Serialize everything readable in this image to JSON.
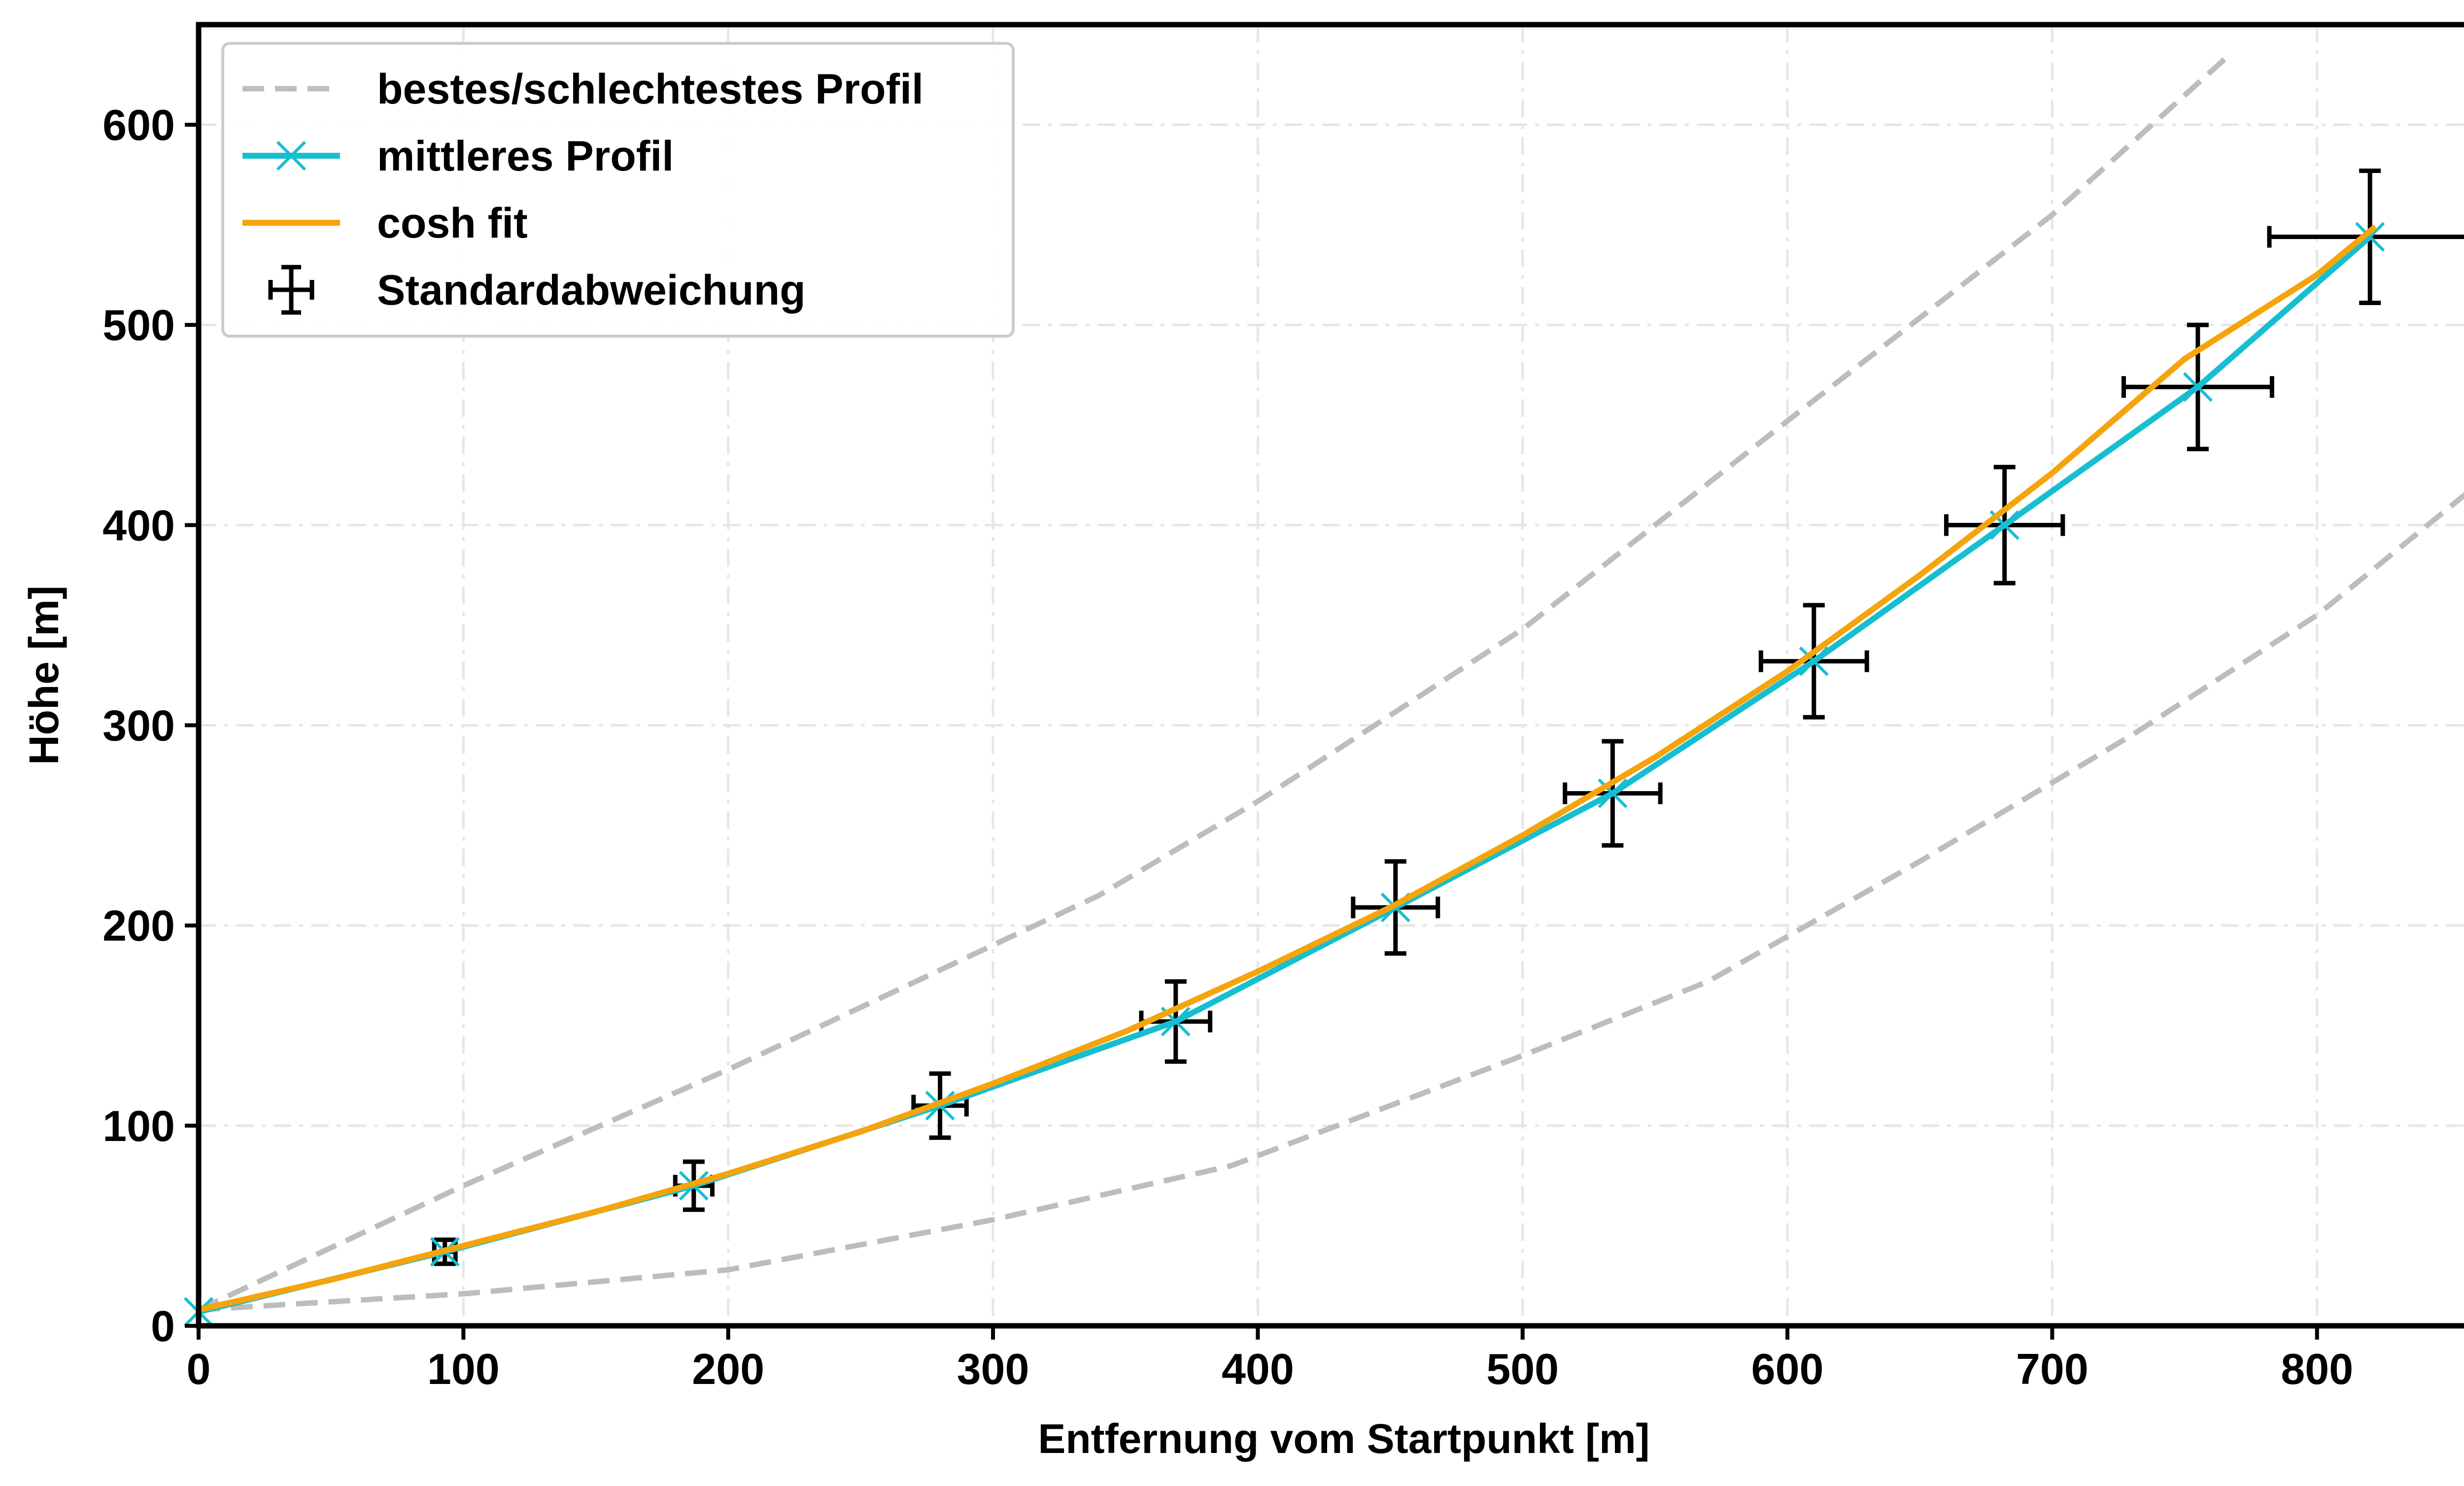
{
  "chart_data": {
    "type": "line",
    "title": "",
    "xlabel": "Entfernung vom Startpunkt [m]",
    "ylabel": "Höhe [m]",
    "xlim": [
      0,
      865
    ],
    "ylim": [
      0,
      650
    ],
    "xticks": [
      0,
      100,
      200,
      300,
      400,
      500,
      600,
      700,
      800
    ],
    "yticks": [
      0,
      100,
      200,
      300,
      400,
      500,
      600
    ],
    "grid": true,
    "legend_position": "top-left",
    "legend": [
      "bestes/schlechtestes Profil",
      "mittleres Profil",
      "cosh fit",
      "Standardabweichung"
    ],
    "colors": {
      "best_worst": "#bdbdbd",
      "mean": "#17becf",
      "fit": "#f5a40c",
      "errorbar": "#000000",
      "grid": "#e6e6e6"
    },
    "series": [
      {
        "name": "bestes/schlechtestes Profil",
        "style": "dashed",
        "x": [
          0,
          100,
          200,
          340,
          400,
          500,
          600,
          700,
          767
        ],
        "y": [
          8,
          70,
          128,
          215,
          262,
          348,
          452,
          555,
          635
        ]
      },
      {
        "name": "",
        "style": "dashed",
        "x": [
          0,
          100,
          200,
          300,
          390,
          500,
          570,
          650,
          730,
          800,
          865
        ],
        "y": [
          8,
          16,
          28,
          53,
          80,
          135,
          172,
          232,
          295,
          355,
          425
        ]
      },
      {
        "name": "mittleres Profil",
        "style": "solid",
        "marker": "x",
        "x": [
          0,
          93,
          187,
          280,
          369,
          452,
          534,
          610,
          682,
          755,
          820
        ],
        "y": [
          7,
          37,
          70,
          110,
          152,
          209,
          266,
          332,
          400,
          469,
          544
        ]
      },
      {
        "name": "cosh fit",
        "style": "solid",
        "x": [
          0,
          50,
          100,
          150,
          200,
          250,
          300,
          350,
          400,
          450,
          500,
          550,
          600,
          650,
          700,
          750,
          800,
          822
        ],
        "y": [
          8,
          23,
          40,
          57,
          76,
          97,
          121,
          147,
          177,
          209,
          245,
          284,
          327,
          375,
          426,
          483,
          525,
          549
        ]
      },
      {
        "name": "Standardabweichung",
        "type": "errorbar",
        "x": [
          93,
          187,
          280,
          369,
          452,
          534,
          610,
          682,
          755,
          820
        ],
        "y": [
          37,
          70,
          110,
          152,
          209,
          266,
          332,
          400,
          469,
          544
        ],
        "xerr": [
          4,
          7,
          10,
          13,
          16,
          18,
          20,
          22,
          28,
          38
        ],
        "yerr": [
          6,
          12,
          16,
          20,
          23,
          26,
          28,
          29,
          31,
          33
        ]
      }
    ]
  }
}
